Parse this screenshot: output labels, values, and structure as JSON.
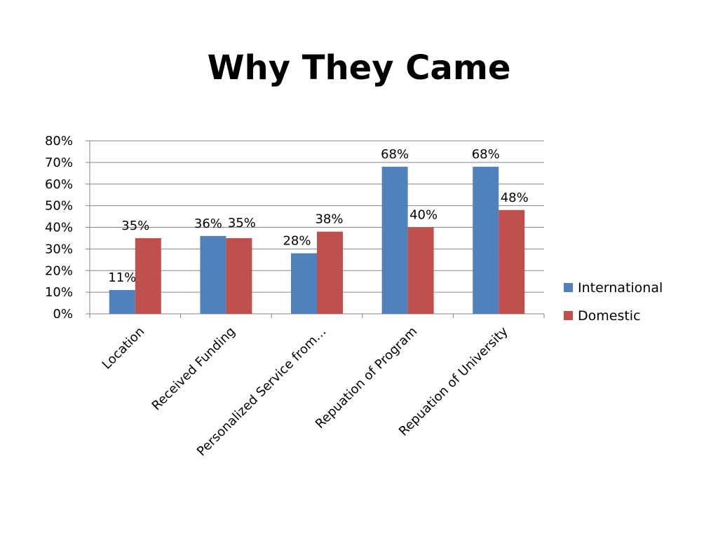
{
  "slide": {
    "title": "Why They Came"
  },
  "chart_data": {
    "type": "bar",
    "title": "",
    "xlabel": "",
    "ylabel": "",
    "categories": [
      "Location",
      "Received Funding",
      "Personalized Service from…",
      "Repuation of Program",
      "Repuation of University"
    ],
    "series": [
      {
        "name": "International",
        "color": "#4f81bd",
        "values": [
          11,
          36,
          28,
          68,
          68
        ]
      },
      {
        "name": "Domestic",
        "color": "#c0504d",
        "values": [
          35,
          35,
          38,
          40,
          48
        ]
      }
    ],
    "data_labels": [
      [
        "11%",
        "36%",
        "28%",
        "68%",
        "68%"
      ],
      [
        "35%",
        "35%",
        "38%",
        "40%",
        "48%"
      ]
    ],
    "ylim": [
      0,
      80
    ],
    "yticks": [
      0,
      10,
      20,
      30,
      40,
      50,
      60,
      70,
      80
    ],
    "ytick_labels": [
      "0%",
      "10%",
      "20%",
      "30%",
      "40%",
      "50%",
      "60%",
      "70%",
      "80%"
    ],
    "grid": true,
    "legend_position": "right"
  }
}
